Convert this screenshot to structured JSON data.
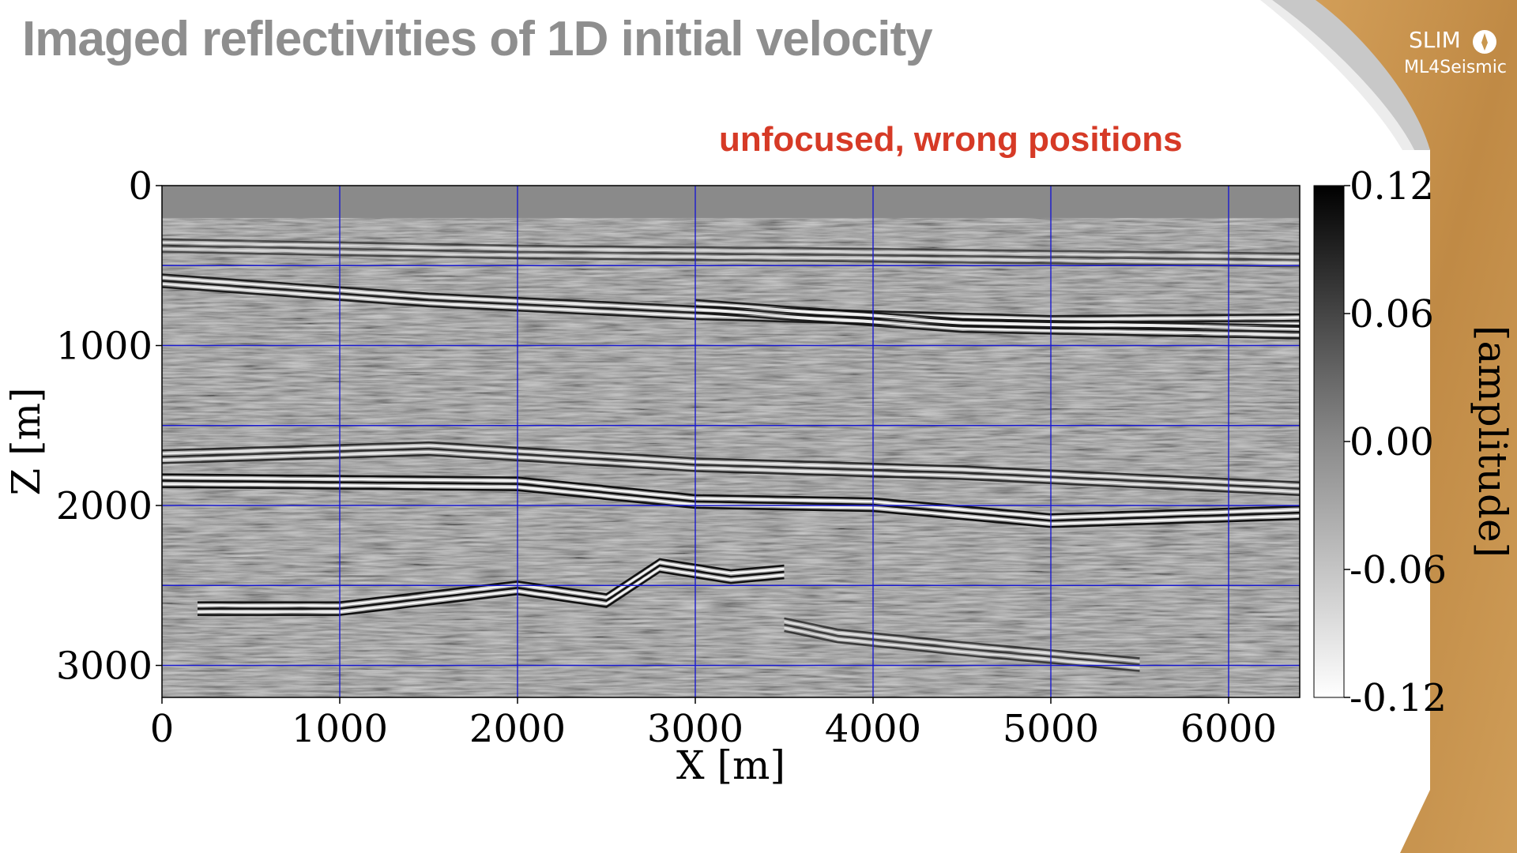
{
  "slide": {
    "title": "Imaged reflectivities of 1D initial velocity",
    "logo": {
      "name": "SLIM",
      "subtitle": "ML4Seismic",
      "icon": "slim-globe-icon"
    },
    "annotation": "unfocused, wrong positions",
    "colors": {
      "title": "#8e8e8e",
      "annotation": "#d63a26",
      "grid": "#1a1ad0",
      "wood": "#c9974e"
    }
  },
  "chart_data": {
    "type": "heatmap",
    "title": "",
    "xlabel": "X [m]",
    "ylabel": "Z [m]",
    "xlim": [
      0,
      6400
    ],
    "ylim": [
      3200,
      0
    ],
    "x_ticks": [
      "0",
      "1000",
      "2000",
      "3000",
      "4000",
      "5000",
      "6000"
    ],
    "y_ticks": [
      "0",
      "1000",
      "2000",
      "3000"
    ],
    "grid_x": [
      1000,
      2000,
      3000,
      4000,
      5000,
      6000
    ],
    "grid_z": [
      500,
      1000,
      1500,
      2000,
      2500,
      3000
    ],
    "grid": true,
    "colorbar": {
      "label": "[amplitude]",
      "ticks": [
        "0.12",
        "0.06",
        "0.00",
        "-0.06",
        "-0.12"
      ],
      "range": [
        -0.12,
        0.12
      ],
      "colormap": "greys"
    },
    "water_layer_depth": 200,
    "reflectors": [
      {
        "name": "shallow-1",
        "z": [
          [
            0,
            380
          ],
          [
            2000,
            420
          ],
          [
            4000,
            440
          ],
          [
            6400,
            470
          ]
        ],
        "amp": 0.6
      },
      {
        "name": "shallow-2",
        "z": [
          [
            0,
            600
          ],
          [
            1500,
            720
          ],
          [
            3000,
            800
          ],
          [
            5000,
            860
          ],
          [
            6400,
            850
          ]
        ],
        "amp": 0.9
      },
      {
        "name": "shallow-3",
        "z": [
          [
            3000,
            760
          ],
          [
            4500,
            880
          ],
          [
            6400,
            920
          ]
        ],
        "amp": 0.9
      },
      {
        "name": "mid-1",
        "z": [
          [
            0,
            1700
          ],
          [
            1500,
            1650
          ],
          [
            3000,
            1750
          ],
          [
            4500,
            1800
          ],
          [
            6400,
            1900
          ]
        ],
        "amp": 0.8
      },
      {
        "name": "mid-2",
        "z": [
          [
            0,
            1850
          ],
          [
            2000,
            1870
          ],
          [
            3000,
            1980
          ],
          [
            4000,
            2000
          ],
          [
            5000,
            2100
          ],
          [
            6400,
            2050
          ]
        ],
        "amp": 1.0
      },
      {
        "name": "deep-1",
        "z": [
          [
            200,
            2650
          ],
          [
            1000,
            2650
          ],
          [
            2000,
            2520
          ],
          [
            2500,
            2600
          ],
          [
            2800,
            2380
          ],
          [
            3200,
            2450
          ],
          [
            3500,
            2420
          ]
        ],
        "amp": 1.0
      },
      {
        "name": "deep-2",
        "z": [
          [
            3500,
            2750
          ],
          [
            3800,
            2820
          ],
          [
            4500,
            2900
          ],
          [
            5500,
            3000
          ]
        ],
        "amp": 0.7
      }
    ]
  }
}
